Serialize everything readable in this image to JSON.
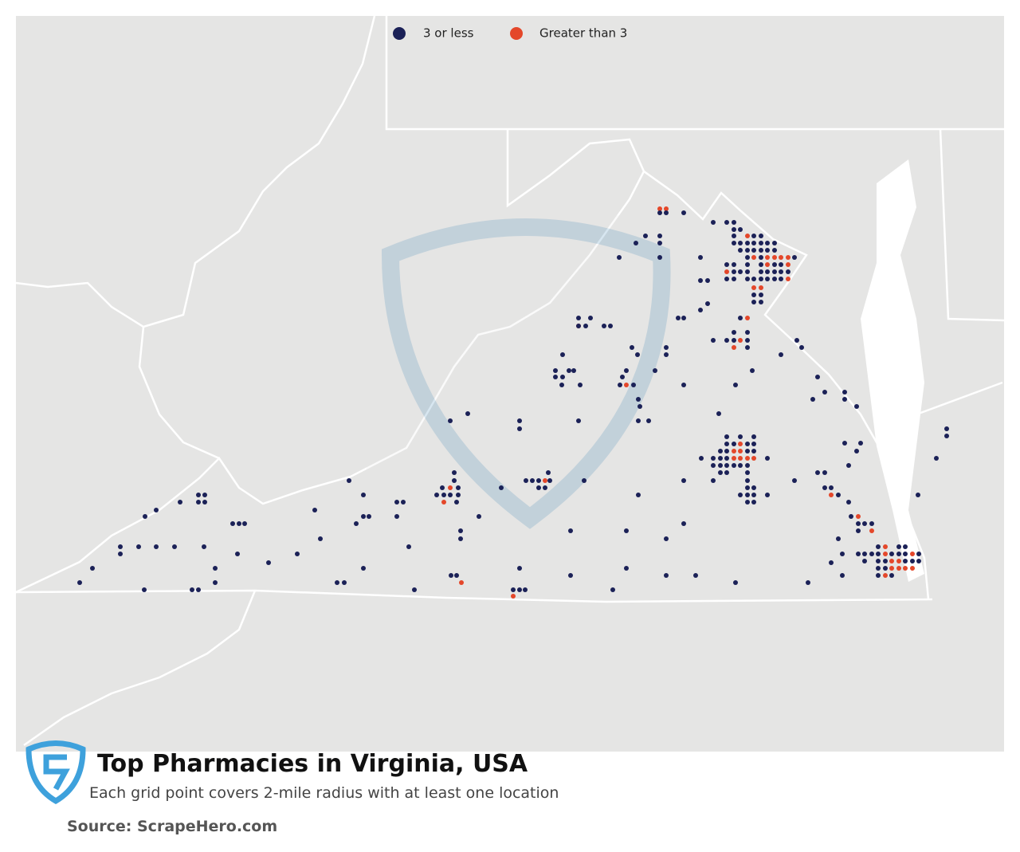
{
  "title": "Top Pharmacies in Virginia, USA",
  "subtitle": "Each grid point covers 2-mile radius with at least one location",
  "source": "Source: ScrapeHero.com",
  "legend": [
    {
      "name": "3 or less",
      "color": "#1b2157"
    },
    {
      "name": "Greater than 3",
      "color": "#e4472a"
    }
  ]
}
